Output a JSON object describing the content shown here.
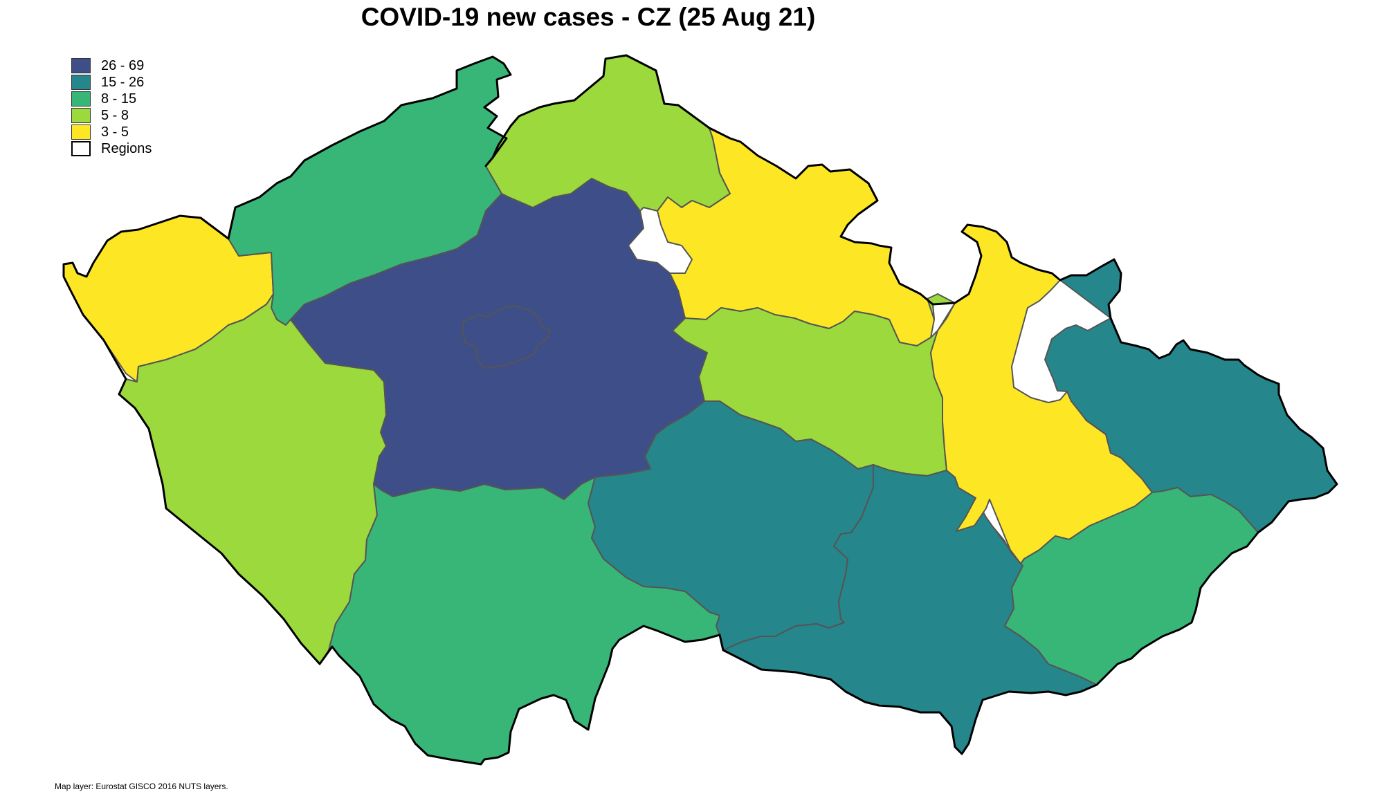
{
  "title": "COVID-19 new cases - CZ (25 Aug 21)",
  "legend": {
    "items": [
      {
        "label": "26 - 69",
        "color": "#3e4e88"
      },
      {
        "label": "15 - 26",
        "color": "#25868b"
      },
      {
        "label": "8 - 15",
        "color": "#38b678"
      },
      {
        "label": "5 - 8",
        "color": "#9bd93c"
      },
      {
        "label": "3 - 5",
        "color": "#fde725"
      },
      {
        "label": "Regions",
        "color": "#ffffff"
      }
    ]
  },
  "credit": "Map layer: Eurostat GISCO 2016 NUTS layers.",
  "map_data": {
    "metric": "new cases",
    "date": "25 Aug 21",
    "regions": [
      {
        "class": "26 - 69",
        "color": "#3e4e88"
      },
      {
        "class": "8 - 15",
        "color": "#38b678"
      },
      {
        "class": "5 - 8",
        "color": "#9bd93c"
      },
      {
        "class": "3 - 5",
        "color": "#fde725"
      },
      {
        "class": "8 - 15",
        "color": "#38b678"
      },
      {
        "class": "5 - 8",
        "color": "#9bd93c"
      },
      {
        "class": "3 - 5",
        "color": "#fde725"
      },
      {
        "class": "5 - 8",
        "color": "#9bd93c"
      },
      {
        "class": "15 - 26",
        "color": "#25868b"
      },
      {
        "class": "15 - 26",
        "color": "#25868b"
      },
      {
        "class": "3 - 5",
        "color": "#fde725"
      },
      {
        "class": "15 - 26",
        "color": "#25868b"
      },
      {
        "class": "8 - 15",
        "color": "#38b678"
      }
    ]
  }
}
